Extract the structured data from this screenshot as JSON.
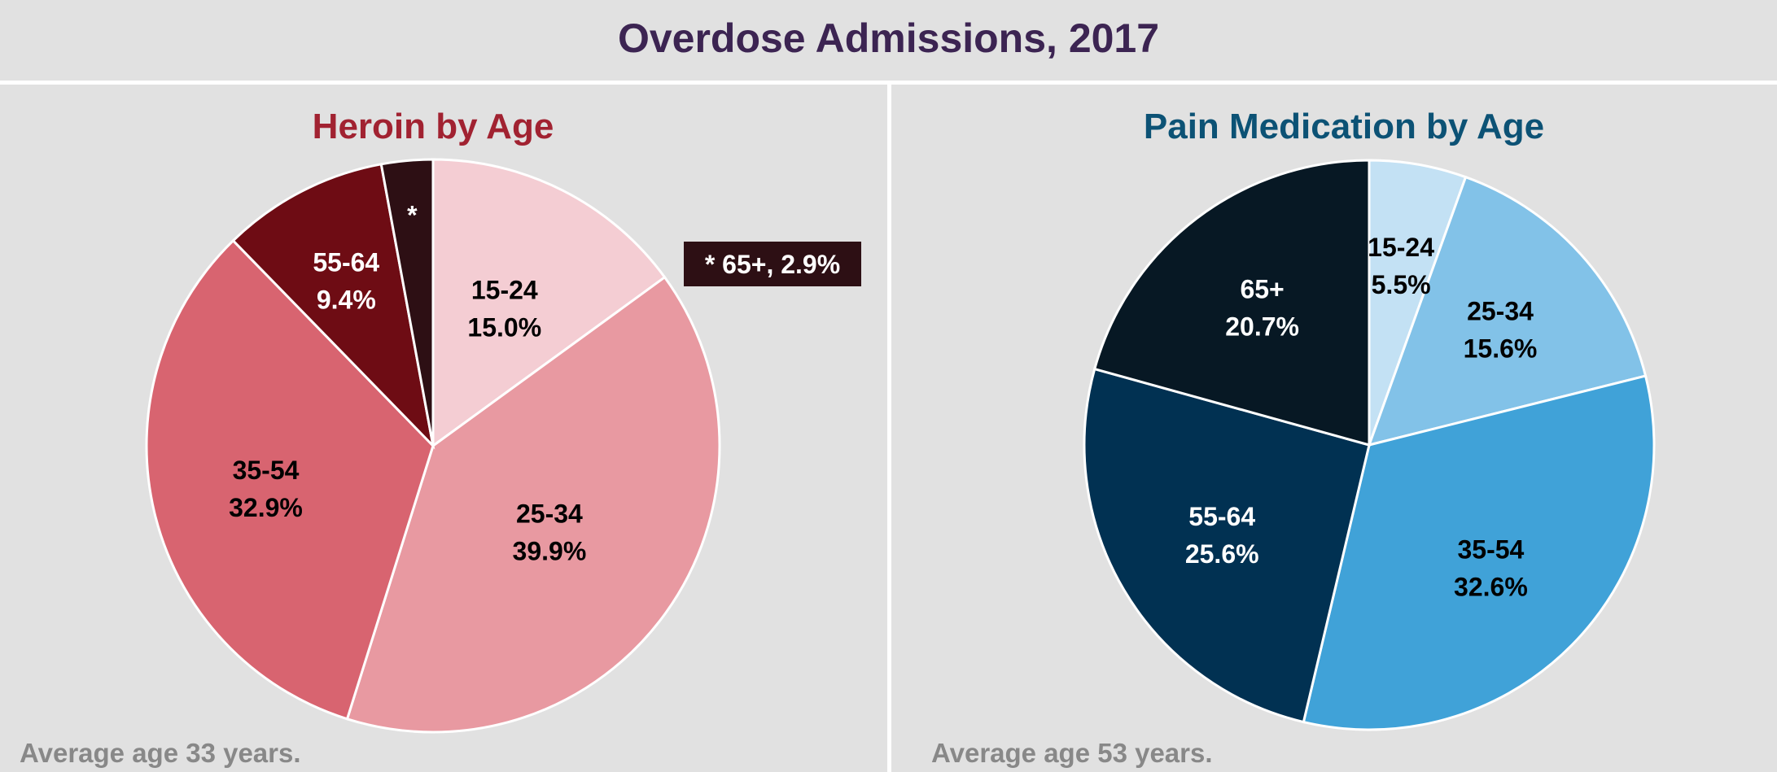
{
  "header": {
    "title": "Overdose Admissions, 2017"
  },
  "chart_data": [
    {
      "type": "pie",
      "title": "Heroin by Age",
      "title_color": "#a12231",
      "slices": [
        {
          "label": "15-24",
          "value": 15.0,
          "display": "15.0%",
          "color": "#f4cdd3",
          "text_color": "#000000"
        },
        {
          "label": "25-34",
          "value": 39.9,
          "display": "39.9%",
          "color": "#e899a1",
          "text_color": "#000000"
        },
        {
          "label": "35-54",
          "value": 32.9,
          "display": "32.9%",
          "color": "#d86470",
          "text_color": "#000000"
        },
        {
          "label": "55-64",
          "value": 9.4,
          "display": "9.4%",
          "color": "#6e0c14",
          "text_color": "#ffffff"
        },
        {
          "label": "*",
          "value": 2.9,
          "display": "",
          "color": "#2d0f14",
          "text_color": "#ffffff"
        }
      ],
      "callout": {
        "text": "* 65+, 2.9%",
        "bg": "#2d0f14"
      },
      "footnote": "Average age 33 years."
    },
    {
      "type": "pie",
      "title": "Pain Medication by Age",
      "title_color": "#0c5275",
      "slices": [
        {
          "label": "15-24",
          "value": 5.5,
          "display": "5.5%",
          "color": "#c3e1f4",
          "text_color": "#000000"
        },
        {
          "label": "25-34",
          "value": 15.6,
          "display": "15.6%",
          "color": "#82c2e8",
          "text_color": "#000000"
        },
        {
          "label": "35-54",
          "value": 32.6,
          "display": "32.6%",
          "color": "#40a2d8",
          "text_color": "#000000"
        },
        {
          "label": "55-64",
          "value": 25.6,
          "display": "25.6%",
          "color": "#013152",
          "text_color": "#ffffff"
        },
        {
          "label": "65+",
          "value": 20.7,
          "display": "20.7%",
          "color": "#071824",
          "text_color": "#ffffff"
        }
      ],
      "footnote": "Average age 53 years."
    }
  ]
}
